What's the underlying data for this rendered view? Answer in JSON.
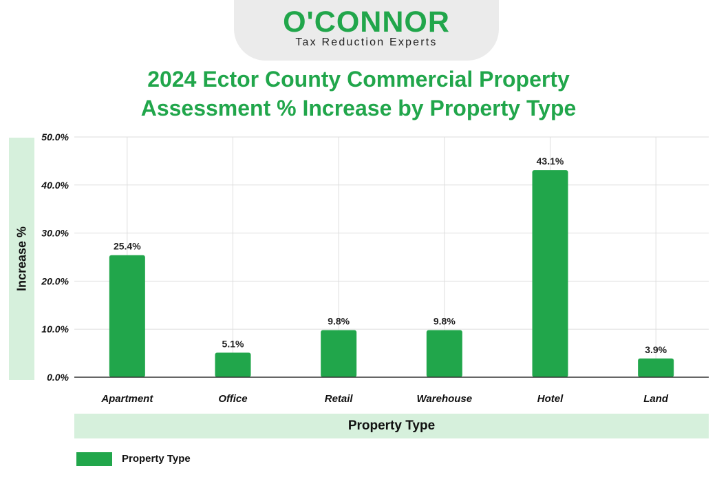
{
  "brand": {
    "name": "O'CONNOR",
    "tagline": "Tax Reduction Experts"
  },
  "colors": {
    "accent": "#21a64b",
    "band": "#d6f0dc",
    "logo_bg": "#ebebeb"
  },
  "chart_data": {
    "type": "bar",
    "title_line1": "2024 Ector County Commercial Property",
    "title_line2": "Assessment % Increase by Property Type",
    "xlabel": "Property Type",
    "ylabel": "Increase %",
    "categories": [
      "Apartment",
      "Office",
      "Retail",
      "Warehouse",
      "Hotel",
      "Land"
    ],
    "series": [
      {
        "name": "Property Type",
        "values": [
          25.4,
          5.1,
          9.8,
          9.8,
          43.1,
          3.9
        ],
        "labels": [
          "25.4%",
          "5.1%",
          "9.8%",
          "9.8%",
          "43.1%",
          "3.9%"
        ]
      }
    ],
    "ylim": [
      0,
      50
    ],
    "yticks": [
      0,
      10,
      20,
      30,
      40,
      50
    ],
    "ytick_labels": [
      "0.0%",
      "10.0%",
      "20.0%",
      "30.0%",
      "40.0%",
      "50.0%"
    ],
    "grid": true,
    "legend": "bottom-left",
    "bar_color": "#21a64b"
  }
}
